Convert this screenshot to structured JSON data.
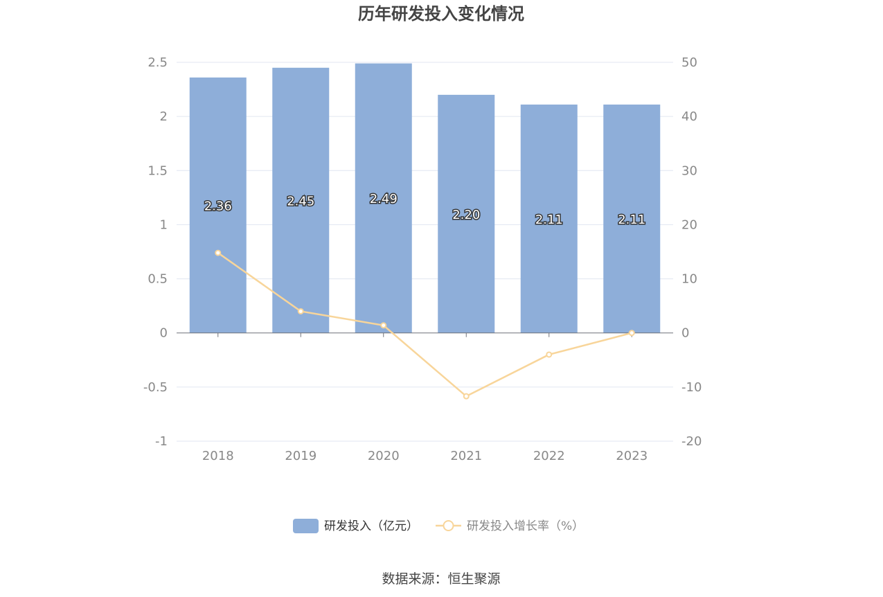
{
  "chart_data": {
    "type": "bar",
    "title": "历年研发投入变化情况",
    "categories": [
      "2018",
      "2019",
      "2020",
      "2021",
      "2022",
      "2023"
    ],
    "series": [
      {
        "name": "研发投入（亿元）",
        "type": "bar",
        "axis": "left",
        "color": "#8eaed9",
        "values": [
          2.36,
          2.45,
          2.49,
          2.2,
          2.11,
          2.11
        ],
        "labels": [
          "2.36",
          "2.45",
          "2.49",
          "2.20",
          "2.11",
          "2.11"
        ]
      },
      {
        "name": "研发投入增长率（%）",
        "type": "line",
        "axis": "right",
        "color": "#f8d59a",
        "values": [
          14.8,
          4.0,
          1.4,
          -11.7,
          -4.0,
          0.0
        ]
      }
    ],
    "y_left": {
      "ylim": [
        -1,
        2.5
      ],
      "ticks": [
        "2.5",
        "2",
        "1.5",
        "1",
        "0.5",
        "0",
        "-0.5",
        "-1"
      ]
    },
    "y_right": {
      "ylim": [
        -20,
        50
      ],
      "ticks": [
        "50",
        "40",
        "30",
        "20",
        "10",
        "0",
        "-10",
        "-20"
      ]
    },
    "grid": true,
    "legend_position": "bottom"
  },
  "source_text": "数据来源：恒生聚源"
}
